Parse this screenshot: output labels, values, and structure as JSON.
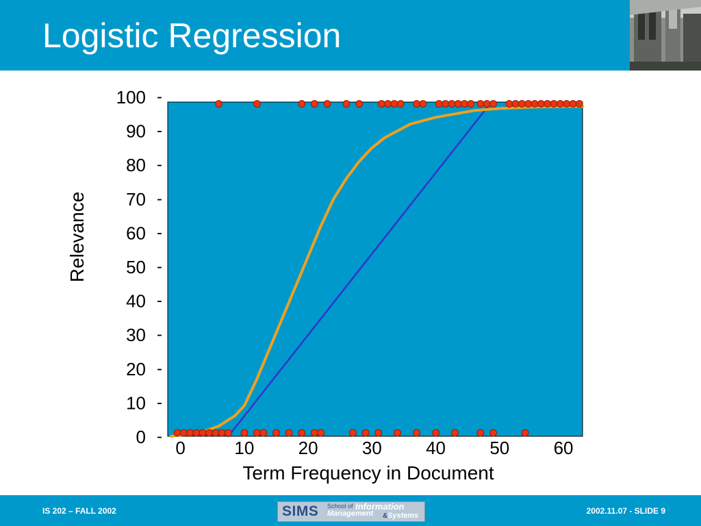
{
  "slide": {
    "title": "Logistic Regression"
  },
  "footer": {
    "left": "IS 202 – FALL 2002",
    "right": "2002.11.07 - SLIDE 9",
    "logo": {
      "sims": "SIMS",
      "school_of": "School of",
      "information": "Information",
      "management": "Management",
      "ampersand": "&",
      "systems": "Systems"
    }
  },
  "colors": {
    "title_bar": "#0099cc",
    "plot_background": "#0099cc",
    "points": "#ee3311",
    "linear_fit": "#3333cc",
    "logistic_fit": "#f0a020"
  },
  "chart_data": {
    "type": "scatter",
    "xlabel": "Term Frequency in Document",
    "ylabel": "Relevance",
    "x_ticks": [
      "0",
      "10",
      "20",
      "30",
      "40",
      "50",
      "60"
    ],
    "y_ticks": [
      "0",
      "10",
      "20",
      "30",
      "40",
      "50",
      "60",
      "70",
      "80",
      "90",
      "100"
    ],
    "y_tick_suffix": "-",
    "xlim": [
      -2,
      63
    ],
    "ylim": [
      0,
      98.5
    ],
    "legend": "none",
    "grid": false,
    "series": [
      {
        "kind": "points",
        "color": "#ee3311",
        "points": [
          [
            -0.5,
            1
          ],
          [
            0.5,
            1
          ],
          [
            1.5,
            1
          ],
          [
            2.5,
            1
          ],
          [
            3.5,
            1
          ],
          [
            4.5,
            1
          ],
          [
            5.5,
            1
          ],
          [
            6.5,
            1
          ],
          [
            7.5,
            1
          ],
          [
            10,
            1
          ],
          [
            12,
            1
          ],
          [
            13,
            1
          ],
          [
            15,
            1
          ],
          [
            17,
            1
          ],
          [
            19,
            1
          ],
          [
            21,
            1
          ],
          [
            22,
            1
          ],
          [
            27,
            1
          ],
          [
            29,
            1
          ],
          [
            31,
            1
          ],
          [
            34,
            1
          ],
          [
            37,
            1
          ],
          [
            40,
            1
          ],
          [
            43,
            1
          ],
          [
            47,
            1
          ],
          [
            49,
            1
          ],
          [
            54,
            1
          ],
          [
            6,
            98
          ],
          [
            12,
            98
          ],
          [
            19,
            98
          ],
          [
            21,
            98
          ],
          [
            23,
            98
          ],
          [
            26,
            98
          ],
          [
            28,
            98
          ],
          [
            31.5,
            98
          ],
          [
            32.5,
            98
          ],
          [
            33.5,
            98
          ],
          [
            34.5,
            98
          ],
          [
            37,
            98
          ],
          [
            38,
            98
          ],
          [
            40.5,
            98
          ],
          [
            41.5,
            98
          ],
          [
            42.5,
            98
          ],
          [
            43.5,
            98
          ],
          [
            44.5,
            98
          ],
          [
            45.5,
            98
          ],
          [
            47,
            98
          ],
          [
            48,
            98
          ],
          [
            49,
            98
          ],
          [
            51.5,
            98
          ],
          [
            52.5,
            98
          ],
          [
            53.5,
            98
          ],
          [
            54.5,
            98
          ],
          [
            55.5,
            98
          ],
          [
            56.5,
            98
          ],
          [
            57.5,
            98
          ],
          [
            58.5,
            98
          ],
          [
            59.5,
            98
          ],
          [
            60.5,
            98
          ],
          [
            61.5,
            98
          ],
          [
            62.5,
            98
          ]
        ]
      },
      {
        "kind": "line",
        "color": "#3333cc",
        "points": [
          [
            7.5,
            0
          ],
          [
            48.5,
            98
          ]
        ]
      },
      {
        "kind": "curve",
        "color": "#f0a020",
        "points": [
          [
            -1.5,
            0
          ],
          [
            3,
            1
          ],
          [
            6,
            3
          ],
          [
            8.5,
            6
          ],
          [
            10,
            9
          ],
          [
            12,
            17
          ],
          [
            14,
            26
          ],
          [
            16,
            35
          ],
          [
            18,
            44
          ],
          [
            20,
            53
          ],
          [
            22,
            62
          ],
          [
            24,
            70
          ],
          [
            26,
            76
          ],
          [
            28,
            81
          ],
          [
            30,
            85
          ],
          [
            32,
            88
          ],
          [
            34,
            90
          ],
          [
            36,
            92
          ],
          [
            38,
            93
          ],
          [
            40,
            94
          ],
          [
            43,
            95
          ],
          [
            46,
            96
          ],
          [
            50,
            96.6
          ],
          [
            55,
            97
          ],
          [
            63,
            97.2
          ]
        ]
      }
    ]
  }
}
